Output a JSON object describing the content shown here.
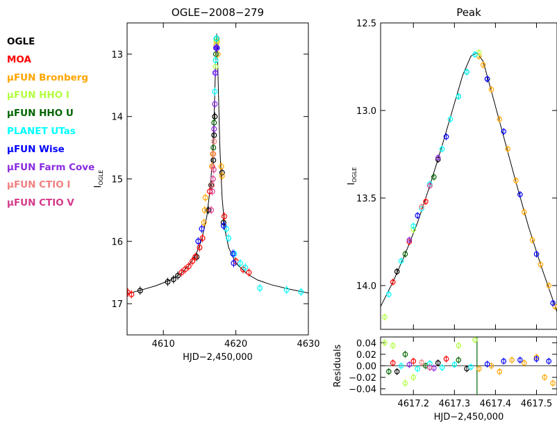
{
  "chart_data": [
    {
      "type": "scatter",
      "title": "OGLE−2008−279",
      "xlabel": "HJD−2,450,000",
      "ylabel": "I",
      "ylabel_sub": "OGLE",
      "xlim": [
        4605,
        4630
      ],
      "ylim": [
        17.5,
        12.5
      ],
      "y_inverted": true,
      "grid": false,
      "xticks": [
        4610,
        4620,
        4630
      ],
      "xtick_labels": [
        "4610",
        "4620",
        "4630"
      ],
      "yticks": [
        13,
        14,
        15,
        16,
        17
      ],
      "ytick_labels": [
        "13",
        "14",
        "15",
        "16",
        "17"
      ],
      "model_curve": {
        "x": [
          4605,
          4607,
          4609,
          4611,
          4612.5,
          4613.5,
          4614.5,
          4615.3,
          4616,
          4616.5,
          4616.8,
          4617.0,
          4617.15,
          4617.3,
          4617.35,
          4617.45,
          4617.6,
          4617.8,
          4618.1,
          4618.5,
          4619,
          4620,
          4621.5,
          4623,
          4625,
          4627.5,
          4630
        ],
        "y": [
          16.84,
          16.78,
          16.71,
          16.62,
          16.51,
          16.39,
          16.21,
          15.97,
          15.6,
          15.1,
          14.6,
          14.0,
          13.4,
          12.9,
          12.67,
          12.9,
          13.6,
          14.5,
          15.3,
          15.82,
          16.1,
          16.35,
          16.52,
          16.62,
          16.7,
          16.77,
          16.83
        ]
      },
      "series": [
        {
          "name": "OGLE",
          "color": "#000000",
          "x": [
            4606.8,
            4610.6,
            4611.4,
            4612.0,
            4614.6,
            4616.2,
            4616.6,
            4616.9,
            4617.0,
            4617.1,
            4618.1,
            4618.3
          ],
          "y": [
            16.79,
            16.65,
            16.61,
            16.55,
            16.25,
            15.5,
            15.1,
            14.7,
            14.3,
            14.0,
            14.9,
            15.7
          ]
        },
        {
          "name": "MOA",
          "color": "#ff0000",
          "x": [
            4605.1,
            4605.6,
            4612.5,
            4613.0,
            4613.5,
            4614.0,
            4614.4,
            4615.0,
            4615.4,
            4616.4,
            4618.4,
            4620.0,
            4621.0,
            4621.8
          ],
          "y": [
            16.82,
            16.85,
            16.5,
            16.45,
            16.4,
            16.32,
            16.25,
            16.1,
            15.95,
            15.2,
            15.6,
            16.32,
            16.45,
            16.5
          ]
        },
        {
          "name": "μFUN Bronberg",
          "color": "#ffa500",
          "x": [
            4615.6,
            4615.7,
            4615.8,
            4616.7,
            4616.8,
            4617.2,
            4617.3,
            4617.4,
            4617.5,
            4618.0,
            4618.1
          ],
          "y": [
            15.7,
            15.5,
            15.3,
            14.8,
            14.6,
            13.1,
            12.85,
            12.8,
            13.0,
            14.8,
            14.95
          ]
        },
        {
          "name": "μFUN HHO I",
          "color": "#b2ff40",
          "x": [
            4617.2,
            4617.3
          ],
          "y": [
            13.2,
            12.8
          ]
        },
        {
          "name": "μFUN HHO U",
          "color": "#006400",
          "x": [
            4616.9,
            4617.0,
            4617.25,
            4617.35
          ],
          "y": [
            14.5,
            14.1,
            13.0,
            12.75
          ]
        },
        {
          "name": "PLANET UTas",
          "color": "#00ffff",
          "x": [
            4617.1,
            4617.2,
            4617.3,
            4618.7,
            4619.0,
            4619.8,
            4620.6,
            4621.3,
            4623.3,
            4627.0,
            4629.0
          ],
          "y": [
            13.6,
            13.1,
            12.75,
            15.8,
            15.95,
            16.2,
            16.35,
            16.42,
            16.75,
            16.78,
            16.81
          ]
        },
        {
          "name": "μFUN Wise",
          "color": "#0000ff",
          "x": [
            4614.8,
            4615.3,
            4617.15,
            4617.25,
            4617.4,
            4618.3,
            4619.6,
            4619.7
          ],
          "y": [
            16.0,
            15.8,
            13.3,
            12.9,
            12.9,
            15.75,
            16.2,
            16.35
          ]
        },
        {
          "name": "μFUN Farm Cove",
          "color": "#8a2be2",
          "x": [
            4617.0,
            4617.1,
            4617.2,
            4617.3
          ],
          "y": [
            14.2,
            13.8,
            13.3,
            12.9
          ]
        },
        {
          "name": "μFUN CTIO I",
          "color": "#f08080",
          "x": [
            4616.7,
            4616.8,
            4616.9,
            4617.0
          ],
          "y": [
            15.1,
            14.8,
            14.6,
            14.4
          ]
        },
        {
          "name": "μFUN CTIO V",
          "color": "#d63a8a",
          "x": [
            4616.6,
            4616.75,
            4616.85,
            4616.95
          ],
          "y": [
            15.5,
            15.2,
            15.0,
            14.85
          ]
        }
      ]
    },
    {
      "type": "scatter",
      "title": "Peak",
      "xlabel": "",
      "ylabel": "I",
      "ylabel_sub": "OGLE",
      "xlim": [
        4617.12,
        4617.55
      ],
      "ylim": [
        14.25,
        12.5
      ],
      "y_inverted": true,
      "grid": false,
      "xticks": [
        4617.2,
        4617.3,
        4617.4,
        4617.5
      ],
      "yticks": [
        12.5,
        13.0,
        13.5,
        14.0
      ],
      "ytick_labels": [
        "12.5",
        "13.0",
        "13.5",
        "14.0"
      ],
      "model_curve": {
        "x": [
          4617.12,
          4617.15,
          4617.18,
          4617.21,
          4617.24,
          4617.27,
          4617.3,
          4617.32,
          4617.34,
          4617.355,
          4617.37,
          4617.39,
          4617.42,
          4617.45,
          4617.48,
          4617.51,
          4617.55
        ],
        "y": [
          14.12,
          13.98,
          13.82,
          13.64,
          13.43,
          13.2,
          12.96,
          12.8,
          12.69,
          12.67,
          12.72,
          12.89,
          13.15,
          13.41,
          13.66,
          13.88,
          14.15
        ]
      },
      "series": [
        {
          "name": "OGLE",
          "color": "#000000",
          "x": [
            4617.16,
            4617.26,
            4617.33,
            4617.38
          ],
          "y": [
            13.92,
            13.28,
            12.78,
            12.82
          ]
        },
        {
          "name": "MOA",
          "color": "#ff0000",
          "x": [
            4617.15,
            4617.19,
            4617.23
          ],
          "y": [
            13.98,
            13.75,
            13.52
          ]
        },
        {
          "name": "μFUN Bronberg",
          "color": "#ffa500",
          "x": [
            4617.36,
            4617.37,
            4617.39,
            4617.41,
            4617.43,
            4617.45,
            4617.47,
            4617.49,
            4617.51,
            4617.53,
            4617.545
          ],
          "y": [
            12.69,
            12.74,
            12.88,
            13.05,
            13.22,
            13.4,
            13.58,
            13.74,
            13.88,
            14.0,
            14.12
          ]
        },
        {
          "name": "μFUN HHO I",
          "color": "#b2ff40",
          "x": [
            4617.13,
            4617.2,
            4617.36
          ],
          "y": [
            14.18,
            13.68,
            12.67
          ]
        },
        {
          "name": "μFUN HHO U",
          "color": "#006400",
          "x": [
            4617.18,
            4617.25,
            4617.31
          ],
          "y": [
            13.82,
            13.38,
            12.92
          ]
        },
        {
          "name": "PLANET UTas",
          "color": "#00ffff",
          "x": [
            4617.14,
            4617.17,
            4617.2,
            4617.22,
            4617.24,
            4617.27,
            4617.29,
            4617.31,
            4617.33,
            4617.35
          ],
          "y": [
            14.05,
            13.86,
            13.66,
            13.56,
            13.42,
            13.22,
            13.05,
            12.92,
            12.78,
            12.68
          ]
        },
        {
          "name": "μFUN Wise",
          "color": "#0000ff",
          "x": [
            4617.21,
            4617.28,
            4617.38,
            4617.42,
            4617.46,
            4617.5,
            4617.54
          ],
          "y": [
            13.6,
            13.15,
            12.82,
            13.12,
            13.48,
            13.82,
            14.1
          ]
        },
        {
          "name": "μFUN Farm Cove",
          "color": "#8a2be2",
          "x": [
            4617.19,
            4617.26
          ],
          "y": [
            13.74,
            13.27
          ]
        },
        {
          "name": "μFUN CTIO I",
          "color": "#f08080",
          "x": [
            4617.22
          ],
          "y": [
            13.55
          ]
        },
        {
          "name": "μFUN CTIO V",
          "color": "#d63a8a",
          "x": [
            4617.24
          ],
          "y": [
            13.43
          ]
        }
      ]
    },
    {
      "type": "scatter",
      "title": "",
      "xlabel": "HJD−2,450,000",
      "ylabel": "Residuals",
      "xlim": [
        4617.12,
        4617.55
      ],
      "ylim": [
        -0.05,
        0.05
      ],
      "grid": false,
      "xticks": [
        4617.2,
        4617.3,
        4617.4,
        4617.5
      ],
      "xtick_labels": [
        "4617.2",
        "4617.3",
        "4617.4",
        "4617.5"
      ],
      "yticks": [
        0.04,
        0.02,
        0.0,
        -0.02,
        -0.04
      ],
      "ytick_labels": [
        "0.04",
        "0.02",
        "0.00",
        "−0.02",
        "−0.04"
      ],
      "vertical_line": {
        "x": 4617.355,
        "color": "#006400"
      },
      "series": [
        {
          "name": "OGLE",
          "color": "#000000",
          "x": [
            4617.16,
            4617.26,
            4617.33
          ],
          "y": [
            -0.01,
            0.005,
            -0.005
          ]
        },
        {
          "name": "MOA",
          "color": "#ff0000",
          "x": [
            4617.15,
            4617.2,
            4617.28
          ],
          "y": [
            0.005,
            0.008,
            0.012
          ]
        },
        {
          "name": "μFUN Bronberg",
          "color": "#ffa500",
          "x": [
            4617.36,
            4617.39,
            4617.41,
            4617.44,
            4617.47,
            4617.5,
            4617.52,
            4617.54
          ],
          "y": [
            -0.005,
            0.0,
            -0.01,
            0.01,
            0.005,
            0.015,
            -0.02,
            -0.03
          ]
        },
        {
          "name": "μFUN HHO I",
          "color": "#b2ff40",
          "x": [
            4617.13,
            4617.15,
            4617.18,
            4617.2,
            4617.31,
            4617.35
          ],
          "y": [
            0.04,
            0.035,
            -0.03,
            -0.02,
            0.035,
            0.045
          ]
        },
        {
          "name": "μFUN HHO U",
          "color": "#006400",
          "x": [
            4617.14,
            4617.18,
            4617.23,
            4617.31
          ],
          "y": [
            -0.01,
            0.02,
            0.0,
            0.01
          ]
        },
        {
          "name": "PLANET UTas",
          "color": "#00ffff",
          "x": [
            4617.17,
            4617.21,
            4617.24,
            4617.27,
            4617.3,
            4617.34
          ],
          "y": [
            0.0,
            -0.005,
            0.004,
            -0.003,
            0.002,
            -0.002
          ]
        },
        {
          "name": "μFUN Wise",
          "color": "#0000ff",
          "x": [
            4617.38,
            4617.42,
            4617.46,
            4617.5,
            4617.53
          ],
          "y": [
            0.003,
            0.008,
            0.01,
            0.012,
            0.008
          ]
        },
        {
          "name": "μFUN Farm Cove",
          "color": "#8a2be2",
          "x": [
            4617.19,
            4617.25
          ],
          "y": [
            0.002,
            -0.004
          ]
        },
        {
          "name": "μFUN CTIO I",
          "color": "#f08080",
          "x": [
            4617.22
          ],
          "y": [
            0.006
          ]
        },
        {
          "name": "μFUN CTIO V",
          "color": "#d63a8a",
          "x": [
            4617.24
          ],
          "y": [
            -0.003
          ]
        }
      ]
    }
  ],
  "legend": {
    "placement": "left",
    "entries": [
      {
        "prefix": "",
        "label": "OGLE",
        "color": "#000000"
      },
      {
        "prefix": "",
        "label": "MOA",
        "color": "#ff0000"
      },
      {
        "prefix": "μ",
        "label": "FUN Bronberg",
        "color": "#ffa500"
      },
      {
        "prefix": "μ",
        "label": "FUN HHO I",
        "color": "#b2ff40"
      },
      {
        "prefix": "μ",
        "label": "FUN HHO U",
        "color": "#006400"
      },
      {
        "prefix": "",
        "label": "PLANET UTas",
        "color": "#00ffff"
      },
      {
        "prefix": "μ",
        "label": "FUN Wise",
        "color": "#0000ff"
      },
      {
        "prefix": "μ",
        "label": "FUN Farm Cove",
        "color": "#8a2be2"
      },
      {
        "prefix": "μ",
        "label": "FUN CTIO I",
        "color": "#f08080"
      },
      {
        "prefix": "μ",
        "label": "FUN CTIO V",
        "color": "#d63a8a"
      }
    ]
  }
}
